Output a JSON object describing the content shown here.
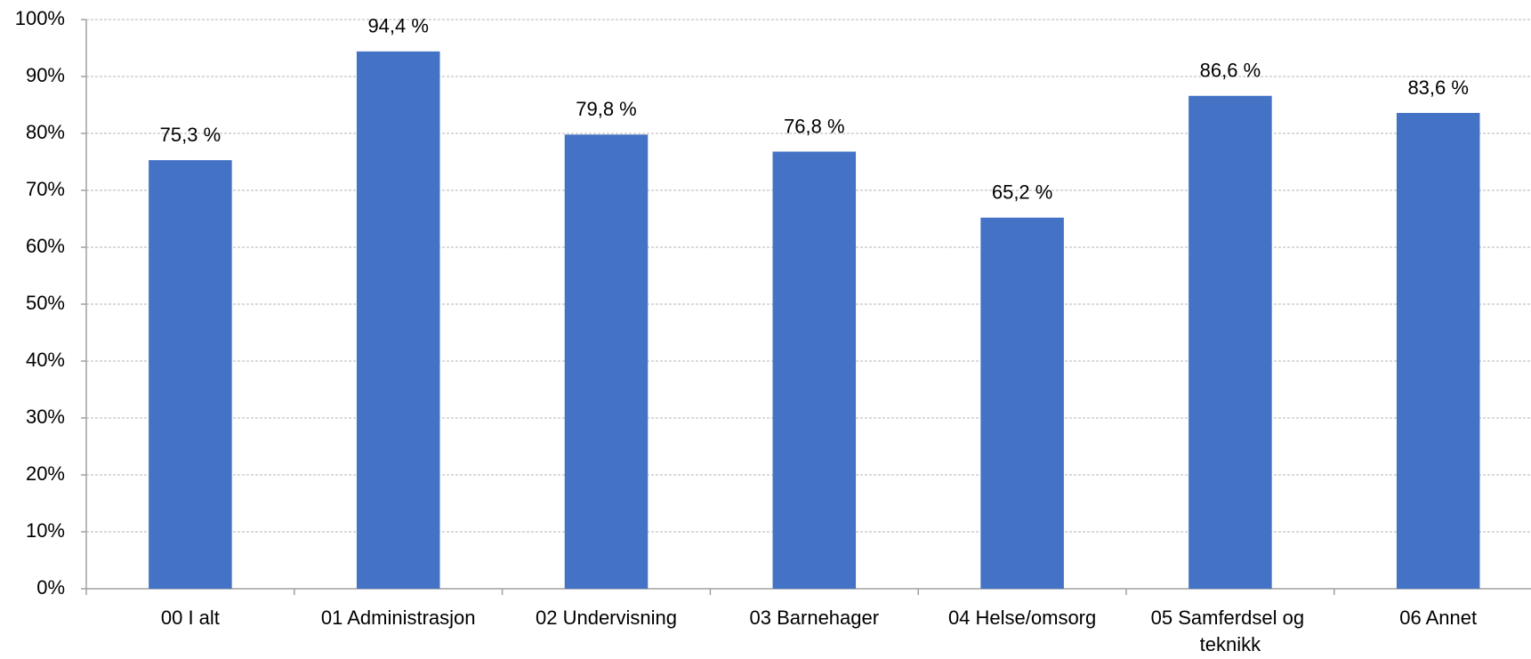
{
  "chart_data": {
    "type": "bar",
    "categories": [
      "00 I alt",
      "01 Administrasjon",
      "02 Undervisning",
      "03 Barnehager",
      "04 Helse/omsorg",
      "05 Samferdsel og teknikk",
      "06 Annet"
    ],
    "values": [
      75.3,
      94.4,
      79.8,
      76.8,
      65.2,
      86.6,
      83.6
    ],
    "value_labels": [
      "75,3 %",
      "94,4 %",
      "79,8 %",
      "76,8 %",
      "65,2 %",
      "86,6 %",
      "83,6 %"
    ],
    "color": "#4472c4",
    "ylim": [
      0,
      100
    ],
    "yticks": [
      {
        "value": 0,
        "label": "0%"
      },
      {
        "value": 10,
        "label": "10%"
      },
      {
        "value": 20,
        "label": "20%"
      },
      {
        "value": 30,
        "label": "30%"
      },
      {
        "value": 40,
        "label": "40%"
      },
      {
        "value": 50,
        "label": "50%"
      },
      {
        "value": 60,
        "label": "60%"
      },
      {
        "value": 70,
        "label": "70%"
      },
      {
        "value": 80,
        "label": "80%"
      },
      {
        "value": 90,
        "label": "90%"
      },
      {
        "value": 100,
        "label": "100%"
      }
    ],
    "grid": true
  }
}
